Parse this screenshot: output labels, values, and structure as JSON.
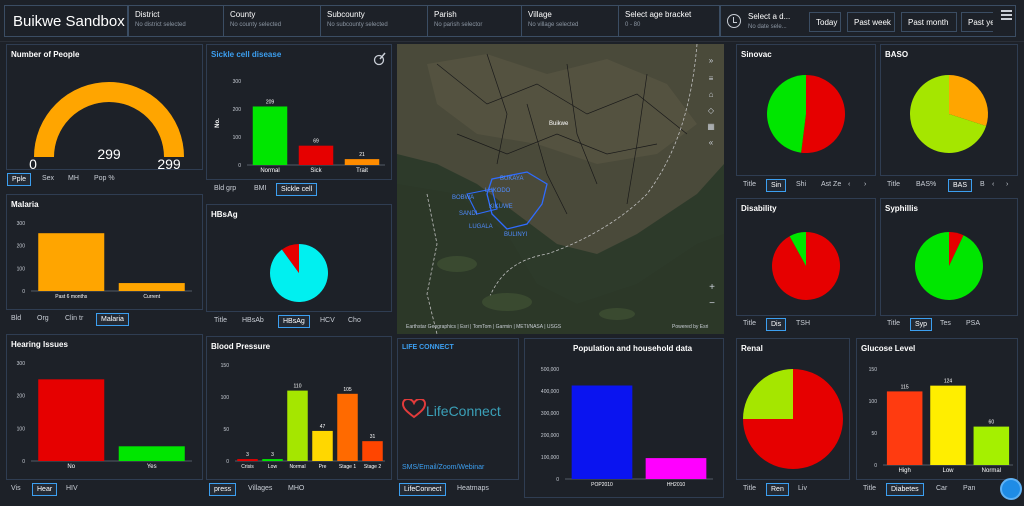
{
  "header": {
    "app_title": "Buikwe Sandbox",
    "filters": [
      {
        "label": "District",
        "value": "No district selected"
      },
      {
        "label": "County",
        "value": "No county selected"
      },
      {
        "label": "Subcounty",
        "value": "No subcounty selected"
      },
      {
        "label": "Parish",
        "value": "No parish selector"
      },
      {
        "label": "Village",
        "value": "No village selected"
      },
      {
        "label": "Select age bracket",
        "value": "0 - 80"
      }
    ],
    "date": {
      "label": "Select a d...",
      "value": "No date sele...",
      "buttons": [
        "Today",
        "Past week",
        "Past month",
        "Past ye"
      ]
    }
  },
  "people": {
    "title": "Number of People",
    "value": "299",
    "min": "0",
    "max": "299",
    "fraction": 1.0,
    "tabs": [
      "Pple",
      "Sex",
      "MH",
      "Pop %"
    ],
    "active": 0
  },
  "sickle": {
    "title": "Sickle cell disease",
    "tabs": [
      "Bld grp",
      "BMI",
      "Sickle cell"
    ],
    "active": 2
  },
  "malaria": {
    "title": "Malaria",
    "tabs": [
      "Bld",
      "Org",
      "Clin tr",
      "Malaria"
    ],
    "active": 3
  },
  "hbsag": {
    "title": "HBsAg",
    "tabs": [
      "Title",
      "HBsAb",
      "HBsAg",
      "HCV",
      "Cho"
    ],
    "active": 2
  },
  "hearing": {
    "title": "Hearing Issues",
    "tabs": [
      "Vis",
      "Hear",
      "HIV"
    ],
    "active": 1
  },
  "bp": {
    "title": "Blood Pressure",
    "tabs": [
      "press",
      "Villages",
      "MHO"
    ],
    "active": 0
  },
  "map": {
    "region_label": "Buikwe",
    "places": [
      "BUKAYA",
      "LUKODO",
      "BOBWA",
      "KIKUWE",
      "SANDI",
      "LUGALA",
      "BULINYI"
    ],
    "attribution": "Earthstar Geographics | Esri | TomTom | Garmin | METI/NASA | USGS",
    "powered": "Powered by Esri"
  },
  "lifeconnect": {
    "title": "LIFE CONNECT",
    "logo": "LifeConnect",
    "subtitle": "SMS/Email/Zoom/Webinar",
    "tabs": [
      "LifeConnect",
      "Heatmaps"
    ],
    "active": 0
  },
  "population": {
    "title": "Population and household data"
  },
  "sinovac": {
    "title": "Sinovac",
    "tabs": [
      "Title",
      "Sin",
      "Shi",
      "Ast Ze"
    ],
    "active": 1
  },
  "baso": {
    "title": "BASO",
    "tabs": [
      "Title",
      "BAS%",
      "BAS",
      "B"
    ],
    "active": 2
  },
  "disability": {
    "title": "Disability",
    "tabs": [
      "Title",
      "Dis",
      "TSH"
    ],
    "active": 1
  },
  "syphilis": {
    "title": "Syphillis",
    "tabs": [
      "Title",
      "Syp",
      "Tes",
      "PSA"
    ],
    "active": 1
  },
  "renal": {
    "title": "Renal",
    "tabs": [
      "Title",
      "Ren",
      "Liv"
    ],
    "active": 1
  },
  "glucose": {
    "title": "Glucose Level",
    "tabs": [
      "Title",
      "Diabetes",
      "Car",
      "Pan"
    ],
    "active": 1
  },
  "colors": {
    "accent": "#3c9ff0",
    "gauge": "#ffa500",
    "green": "#00e600",
    "red": "#e60000",
    "panel_border": "#2f3d52"
  },
  "chart_data": [
    {
      "id": "sickle",
      "type": "bar",
      "ylabel": "No.",
      "ylim": [
        0,
        300
      ],
      "yticks": [
        0,
        100,
        200,
        300
      ],
      "categories": [
        "Normal",
        "Sick",
        "Trait"
      ],
      "values": [
        209,
        69,
        21
      ],
      "colors": [
        "#00e600",
        "#e60000",
        "#ff8c00"
      ],
      "labels": true
    },
    {
      "id": "malaria",
      "type": "bar",
      "ylim": [
        0,
        300
      ],
      "yticks": [
        0,
        100,
        200,
        300
      ],
      "categories": [
        "Past 6 months",
        "Current"
      ],
      "values": [
        255,
        35
      ],
      "colors": [
        "#ffa500",
        "#ffa500"
      ],
      "labels": false
    },
    {
      "id": "hearing",
      "type": "bar",
      "ylim": [
        0,
        300
      ],
      "yticks": [
        0,
        100,
        200,
        300
      ],
      "categories": [
        "No",
        "Yes"
      ],
      "values": [
        250,
        45
      ],
      "colors": [
        "#e60000",
        "#00e600"
      ],
      "labels": false
    },
    {
      "id": "bp",
      "type": "bar",
      "ylim": [
        0,
        150
      ],
      "yticks": [
        0,
        50,
        100,
        150
      ],
      "categories": [
        "Crisis",
        "Low",
        "Normal",
        "Pre",
        "Stage 1",
        "Stage 2"
      ],
      "values": [
        3,
        3,
        110,
        47,
        105,
        31
      ],
      "colors": [
        "#e60000",
        "#00e600",
        "#a5e600",
        "#ffd700",
        "#ff6a00",
        "#ff4500"
      ],
      "labels": true
    },
    {
      "id": "population",
      "type": "bar",
      "ylim": [
        0,
        500000
      ],
      "yticks": [
        0,
        100000,
        200000,
        300000,
        400000,
        500000
      ],
      "ytick_labels": [
        "0",
        "100,000",
        "200,000",
        "300,000",
        "400,000",
        "500,000"
      ],
      "categories": [
        "POP2010",
        "HH2010"
      ],
      "values": [
        425000,
        95000
      ],
      "colors": [
        "#0a14f0",
        "#ff00ff"
      ],
      "labels": false
    },
    {
      "id": "glucose",
      "type": "bar",
      "ylim": [
        0,
        150
      ],
      "yticks": [
        0,
        50,
        100,
        150
      ],
      "categories": [
        "High",
        "Low",
        "Normal"
      ],
      "values": [
        115,
        124,
        60
      ],
      "colors": [
        "#ff3b10",
        "#ffee00",
        "#a5f000"
      ],
      "labels": true
    },
    {
      "id": "hbsag",
      "type": "pie",
      "values": [
        90,
        10
      ],
      "colors": [
        "#00f0f0",
        "#e60000"
      ]
    },
    {
      "id": "sinovac",
      "type": "pie",
      "values": [
        52,
        48
      ],
      "colors": [
        "#e60000",
        "#00e600"
      ]
    },
    {
      "id": "baso",
      "type": "pie",
      "values": [
        30,
        70
      ],
      "colors": [
        "#ffa500",
        "#a5e600"
      ]
    },
    {
      "id": "disability",
      "type": "pie",
      "values": [
        92,
        8
      ],
      "colors": [
        "#e60000",
        "#00e600"
      ]
    },
    {
      "id": "syphilis",
      "type": "pie",
      "values": [
        7,
        93
      ],
      "colors": [
        "#e60000",
        "#00e600"
      ]
    },
    {
      "id": "renal",
      "type": "pie",
      "values": [
        75,
        25
      ],
      "colors": [
        "#e60000",
        "#a5e600"
      ]
    }
  ]
}
